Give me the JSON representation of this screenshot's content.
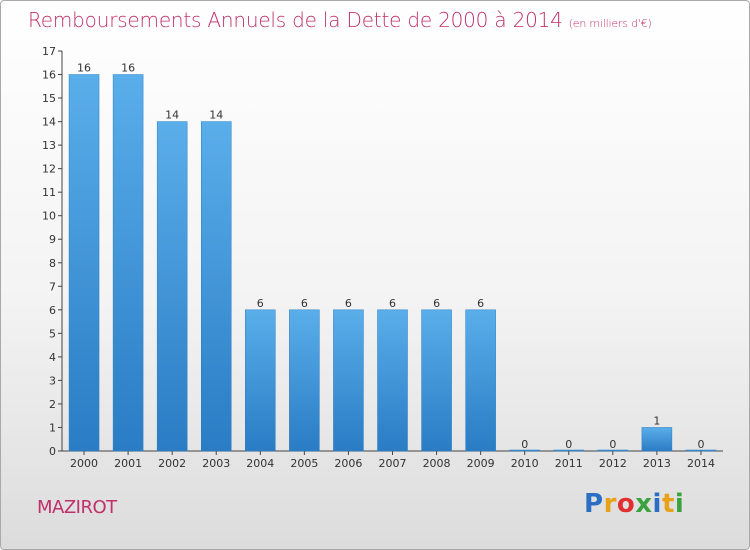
{
  "header": {
    "title": "Remboursements Annuels de la Dette de 2000 à 2014",
    "subtitle": "(en milliers d'€)"
  },
  "footer": {
    "commune": "MAZIROT",
    "logo_letters": [
      "P",
      "r",
      "o",
      "x",
      "i",
      "t",
      "i"
    ]
  },
  "colors": {
    "bar_top": "#5aaeea",
    "bar_bottom": "#2a7cc4",
    "title": "#c0306a"
  },
  "chart_data": {
    "type": "bar",
    "title": "Remboursements Annuels de la Dette de 2000 à 2014",
    "subtitle": "(en milliers d'€)",
    "xlabel": "",
    "ylabel": "",
    "categories": [
      "2000",
      "2001",
      "2002",
      "2003",
      "2004",
      "2005",
      "2006",
      "2007",
      "2008",
      "2009",
      "2010",
      "2011",
      "2012",
      "2013",
      "2014"
    ],
    "values": [
      16,
      16,
      14,
      14,
      6,
      6,
      6,
      6,
      6,
      6,
      0,
      0,
      0,
      1,
      0
    ],
    "data_labels": [
      "16",
      "16",
      "14",
      "14",
      "6",
      "6",
      "6",
      "6",
      "6",
      "6",
      "0",
      "0",
      "0",
      "1",
      "0"
    ],
    "ylim": [
      0,
      17
    ],
    "yticks": [
      "0",
      "1",
      "2",
      "3",
      "4",
      "5",
      "6",
      "7",
      "8",
      "9",
      "10",
      "11",
      "12",
      "13",
      "14",
      "15",
      "16",
      "17"
    ],
    "grid": false,
    "legend": "none"
  }
}
